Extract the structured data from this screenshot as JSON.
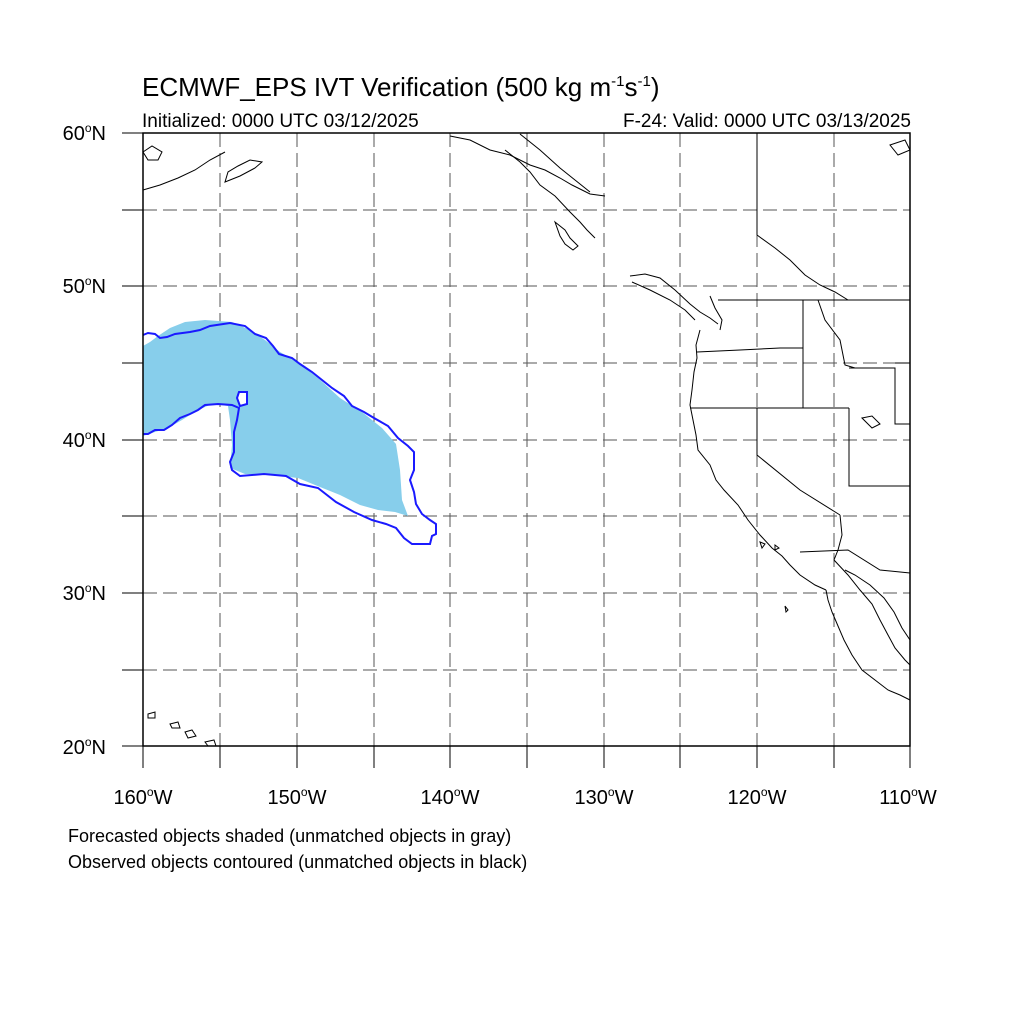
{
  "title": {
    "main": "ECMWF_EPS IVT Verification (500 kg m",
    "sup1": "-1",
    "mid": "s",
    "sup2": "-1",
    "end": ")"
  },
  "initialized": "Initialized: 0000 UTC 03/12/2025",
  "valid": "F-24: Valid: 0000 UTC 03/13/2025",
  "lat_labels": [
    {
      "value": "60",
      "hemi": "N"
    },
    {
      "value": "50",
      "hemi": "N"
    },
    {
      "value": "40",
      "hemi": "N"
    },
    {
      "value": "30",
      "hemi": "N"
    },
    {
      "value": "20",
      "hemi": "N"
    }
  ],
  "lon_labels": [
    {
      "value": "160",
      "hemi": "W"
    },
    {
      "value": "150",
      "hemi": "W"
    },
    {
      "value": "140",
      "hemi": "W"
    },
    {
      "value": "130",
      "hemi": "W"
    },
    {
      "value": "120",
      "hemi": "W"
    },
    {
      "value": "110",
      "hemi": "W"
    }
  ],
  "deg_symbol": "o",
  "footnotes": [
    "Forecasted objects shaded (unmatched objects in gray)",
    "Observed objects contoured (unmatched objects in black)"
  ],
  "map": {
    "lon_range": [
      -160,
      -110
    ],
    "lat_range": [
      20,
      60
    ],
    "grid_style": "dashed",
    "forecast_fill_color": "#87ceeb",
    "observed_contour_color": "#1a1aff",
    "coastline_color": "#000000"
  }
}
